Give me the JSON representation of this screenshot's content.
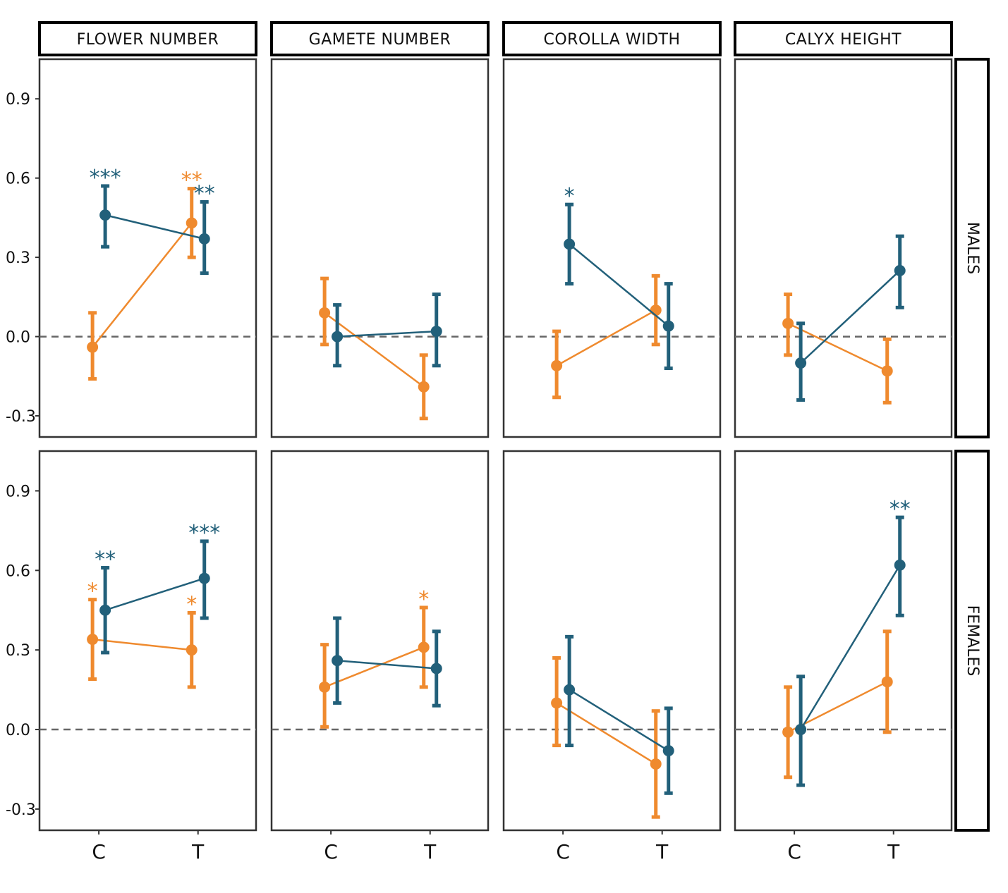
{
  "colors": {
    "series_orange": "#EF8A2E",
    "series_blue": "#22607A",
    "panel_border": "#333333",
    "strip_border": "#000000",
    "zero_line": "#666666"
  },
  "chart_data": {
    "type": "point-errorbar",
    "layout": "facet-grid",
    "columns": [
      "FLOWER NUMBER",
      "GAMETE NUMBER",
      "COROLLA WIDTH",
      "CALYX HEIGHT"
    ],
    "rows": [
      "MALES",
      "FEMALES"
    ],
    "categories": [
      "C",
      "T"
    ],
    "y_ticks": [
      "0.9",
      "0.6",
      "0.3",
      "0.0",
      "-0.3"
    ],
    "ylim": [
      -0.38,
      1.05
    ],
    "zero_line": true,
    "grid": false,
    "xlabel": "",
    "ylabel": "",
    "panels": [
      {
        "row": "MALES",
        "column": "FLOWER NUMBER",
        "series": [
          {
            "color": "orange",
            "values": [
              -0.04,
              0.43
            ],
            "lower": [
              -0.16,
              0.3
            ],
            "upper": [
              0.09,
              0.56
            ],
            "sig": [
              "",
              "**"
            ]
          },
          {
            "color": "blue",
            "values": [
              0.46,
              0.37
            ],
            "lower": [
              0.34,
              0.24
            ],
            "upper": [
              0.57,
              0.51
            ],
            "sig": [
              "***",
              "**"
            ]
          }
        ]
      },
      {
        "row": "MALES",
        "column": "GAMETE NUMBER",
        "series": [
          {
            "color": "orange",
            "values": [
              0.09,
              -0.19
            ],
            "lower": [
              -0.03,
              -0.31
            ],
            "upper": [
              0.22,
              -0.07
            ],
            "sig": [
              "",
              ""
            ]
          },
          {
            "color": "blue",
            "values": [
              0.0,
              0.02
            ],
            "lower": [
              -0.11,
              -0.11
            ],
            "upper": [
              0.12,
              0.16
            ],
            "sig": [
              "",
              ""
            ]
          }
        ]
      },
      {
        "row": "MALES",
        "column": "COROLLA WIDTH",
        "series": [
          {
            "color": "orange",
            "values": [
              -0.11,
              0.1
            ],
            "lower": [
              -0.23,
              -0.03
            ],
            "upper": [
              0.02,
              0.23
            ],
            "sig": [
              "",
              ""
            ]
          },
          {
            "color": "blue",
            "values": [
              0.35,
              0.04
            ],
            "lower": [
              0.2,
              -0.12
            ],
            "upper": [
              0.5,
              0.2
            ],
            "sig": [
              "*",
              ""
            ]
          }
        ]
      },
      {
        "row": "MALES",
        "column": "CALYX HEIGHT",
        "series": [
          {
            "color": "orange",
            "values": [
              0.05,
              -0.13
            ],
            "lower": [
              -0.07,
              -0.25
            ],
            "upper": [
              0.16,
              -0.01
            ],
            "sig": [
              "",
              ""
            ]
          },
          {
            "color": "blue",
            "values": [
              -0.1,
              0.25
            ],
            "lower": [
              -0.24,
              0.11
            ],
            "upper": [
              0.05,
              0.38
            ],
            "sig": [
              "",
              ""
            ]
          }
        ]
      },
      {
        "row": "FEMALES",
        "column": "FLOWER NUMBER",
        "series": [
          {
            "color": "orange",
            "values": [
              0.34,
              0.3
            ],
            "lower": [
              0.19,
              0.16
            ],
            "upper": [
              0.49,
              0.44
            ],
            "sig": [
              "*",
              "*"
            ]
          },
          {
            "color": "blue",
            "values": [
              0.45,
              0.57
            ],
            "lower": [
              0.29,
              0.42
            ],
            "upper": [
              0.61,
              0.71
            ],
            "sig": [
              "**",
              "***"
            ]
          }
        ]
      },
      {
        "row": "FEMALES",
        "column": "GAMETE NUMBER",
        "series": [
          {
            "color": "orange",
            "values": [
              0.16,
              0.31
            ],
            "lower": [
              0.01,
              0.16
            ],
            "upper": [
              0.32,
              0.46
            ],
            "sig": [
              "",
              "*"
            ]
          },
          {
            "color": "blue",
            "values": [
              0.26,
              0.23
            ],
            "lower": [
              0.1,
              0.09
            ],
            "upper": [
              0.42,
              0.37
            ],
            "sig": [
              "",
              ""
            ]
          }
        ]
      },
      {
        "row": "FEMALES",
        "column": "COROLLA WIDTH",
        "series": [
          {
            "color": "orange",
            "values": [
              0.1,
              -0.13
            ],
            "lower": [
              -0.06,
              -0.33
            ],
            "upper": [
              0.27,
              0.07
            ],
            "sig": [
              "",
              ""
            ]
          },
          {
            "color": "blue",
            "values": [
              0.15,
              -0.08
            ],
            "lower": [
              -0.06,
              -0.24
            ],
            "upper": [
              0.35,
              0.08
            ],
            "sig": [
              "",
              ""
            ]
          }
        ]
      },
      {
        "row": "FEMALES",
        "column": "CALYX HEIGHT",
        "series": [
          {
            "color": "orange",
            "values": [
              -0.01,
              0.18
            ],
            "lower": [
              -0.18,
              -0.01
            ],
            "upper": [
              0.16,
              0.37
            ],
            "sig": [
              "",
              ""
            ]
          },
          {
            "color": "blue",
            "values": [
              0.0,
              0.62
            ],
            "lower": [
              -0.21,
              0.43
            ],
            "upper": [
              0.2,
              0.8
            ],
            "sig": [
              "",
              "**"
            ]
          }
        ]
      }
    ]
  }
}
